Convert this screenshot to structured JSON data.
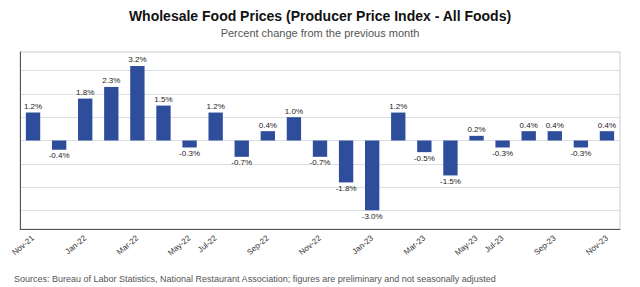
{
  "chart_data": {
    "type": "bar",
    "title": "Wholesale Food Prices (Producer Price Index - All Foods)",
    "subtitle": "Percent change from the previous month",
    "annotations": [
      "Sources: Bureau of Labor Statistics, National Restaurant Association; figures are preliminary and not seasonally adjusted"
    ],
    "categories": [
      "Nov-21",
      null,
      "Jan-22",
      null,
      "Mar-22",
      null,
      "May-22",
      "Jul-22",
      null,
      "Sep-22",
      null,
      "Nov-22",
      null,
      "Jan-23",
      null,
      "Mar-23",
      null,
      "May-23",
      "Jul-23",
      null,
      "Sep-23",
      null,
      "Nov-23"
    ],
    "values": [
      1.2,
      -0.4,
      1.8,
      2.3,
      3.2,
      1.5,
      -0.3,
      1.2,
      -0.7,
      0.4,
      1.0,
      -0.7,
      -1.8,
      -3.0,
      1.2,
      -0.5,
      -1.5,
      0.2,
      -0.3,
      0.4,
      0.4,
      -0.3,
      0.4
    ],
    "value_labels": [
      "1.2%",
      "-0.4%",
      "1.8%",
      "2.3%",
      "3.2%",
      "1.5%",
      "-0.3%",
      "1.2%",
      "-0.7%",
      "0.4%",
      "1.0%",
      "-0.7%",
      "-1.8%",
      "-3.0%",
      "1.2%",
      "-0.5%",
      "-1.5%",
      "0.2%",
      "-0.3%",
      "0.4%",
      "0.4%",
      "-0.3%",
      "0.4%"
    ],
    "data_labels": true,
    "color": "#2E4D9B",
    "ylim": [
      -3.8,
      3.8
    ],
    "yticks": [
      -3,
      -2,
      -1,
      0,
      1,
      2,
      3
    ],
    "grid": true,
    "tick_labels": "x"
  }
}
